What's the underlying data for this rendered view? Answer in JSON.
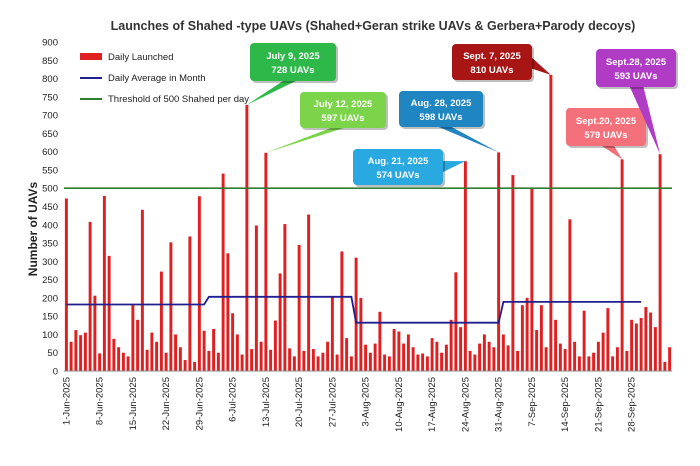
{
  "chart_data": {
    "type": "bar",
    "title": "Launches of Shahed -type UAVs (Shahed+Geran strike UAVs & Gerbera+Parody decoys)",
    "ylabel": "Number of UAVs",
    "xlabel": "",
    "ylim": [
      0,
      900
    ],
    "ytick_step": 50,
    "grid": false,
    "legend_position": "top-left",
    "x_tick_labels": [
      "1-Jun-2025",
      "8-Jun-2025",
      "15-Jun-2025",
      "22-Jun-2025",
      "29-Jun-2025",
      "6-Jul-2025",
      "13-Jul-2025",
      "20-Jul-2025",
      "27-Jul-2025",
      "3-Aug-2025",
      "10-Aug-2025",
      "17-Aug-2025",
      "24-Aug-2025",
      "31-Aug-2025",
      "7-Sep-2025",
      "14-Sep-2025",
      "21-Sep-2025",
      "28-Sep-2025"
    ],
    "series": [
      {
        "name": "Daily Launched",
        "kind": "bar",
        "color": "#e02020",
        "values": [
          472,
          80,
          112,
          98,
          105,
          408,
          206,
          48,
          479,
          315,
          88,
          65,
          50,
          40,
          180,
          140,
          441,
          58,
          105,
          80,
          272,
          50,
          352,
          100,
          65,
          30,
          368,
          25,
          478,
          110,
          55,
          115,
          50,
          540,
          322,
          158,
          100,
          45,
          728,
          60,
          398,
          80,
          597,
          58,
          138,
          267,
          402,
          62,
          40,
          345,
          55,
          428,
          60,
          40,
          50,
          80,
          205,
          45,
          327,
          90,
          40,
          310,
          200,
          72,
          50,
          75,
          162,
          45,
          40,
          115,
          108,
          75,
          100,
          65,
          45,
          48,
          40,
          90,
          80,
          50,
          72,
          140,
          270,
          120,
          574,
          55,
          45,
          75,
          100,
          80,
          65,
          598,
          100,
          70,
          536,
          55,
          180,
          200,
          500,
          112,
          180,
          65,
          810,
          140,
          75,
          60,
          415,
          80,
          40,
          165,
          40,
          50,
          80,
          105,
          172,
          40,
          65,
          579,
          55,
          140,
          130,
          145,
          175,
          160,
          120,
          593,
          25,
          65
        ]
      },
      {
        "name": "Daily Average in Month",
        "kind": "step",
        "color": "#1f1f8f",
        "segments": [
          {
            "from_day": 0,
            "to_day": 29,
            "value": 182
          },
          {
            "from_day": 30,
            "to_day": 60,
            "value": 203
          },
          {
            "from_day": 61,
            "to_day": 91,
            "value": 132
          },
          {
            "from_day": 92,
            "to_day": 121,
            "value": 189
          }
        ]
      },
      {
        "name": "Threshold of 500 Shahed per day",
        "kind": "hline",
        "color": "#2e7d32",
        "value": 500
      }
    ],
    "annotations": [
      {
        "date": "July 9, 2025",
        "label": "728 UAVs",
        "day": 38,
        "value": 728,
        "color": "#2fb84a"
      },
      {
        "date": "July 12, 2025",
        "label": "597 UAVs",
        "day": 42,
        "value": 597,
        "color": "#7cd44a"
      },
      {
        "date": "Aug. 21, 2025",
        "label": "574 UAVs",
        "day": 84,
        "value": 574,
        "color": "#2aa9e0"
      },
      {
        "date": "Aug. 28, 2025",
        "label": "598 UAVs",
        "day": 91,
        "value": 598,
        "color": "#1f86c2"
      },
      {
        "date": "Sept. 7, 2025",
        "label": "810 UAVs",
        "day": 102,
        "value": 810,
        "color": "#a81515"
      },
      {
        "date": "Sept.20, 2025",
        "label": "579 UAVs",
        "day": 117,
        "value": 579,
        "color": "#f4707a"
      },
      {
        "date": "Sept.28, 2025",
        "label": "593 UAVs",
        "day": 125,
        "value": 593,
        "color": "#b03cc6"
      }
    ]
  }
}
